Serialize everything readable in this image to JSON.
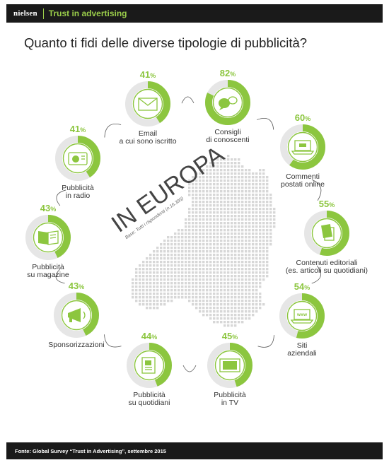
{
  "header": {
    "brand": "nielsen",
    "title": "Trust in advertising"
  },
  "main_title": "Quanto ti fidi delle diverse tipologie di pubblicità?",
  "map": {
    "heading": "IN EUROPA",
    "base": "Base: Tutti i rispondenti (n.16.395)"
  },
  "chart_data": {
    "type": "donut",
    "title": "Quanto ti fidi delle diverse tipologie di pubblicità?",
    "accent_color": "#8cc63f",
    "track_color": "#e6e6e6",
    "items": [
      {
        "label": [
          "Email",
          "a cui sono iscritto"
        ],
        "value": 41,
        "percent_label": "41%",
        "icon": "envelope-icon"
      },
      {
        "label": [
          "Consigli",
          "di conoscenti"
        ],
        "value": 82,
        "percent_label": "82%",
        "icon": "speech-bubbles-icon"
      },
      {
        "label": [
          "Commenti",
          "postati online"
        ],
        "value": 60,
        "percent_label": "60%",
        "icon": "laptop-icon"
      },
      {
        "label": [
          "Contenuti editoriali",
          "(es. articoli su quotidiani)"
        ],
        "value": 55,
        "percent_label": "55%",
        "icon": "document-icon"
      },
      {
        "label": [
          "Siti",
          "aziendali"
        ],
        "value": 54,
        "percent_label": "54%",
        "icon": "laptop-www-icon"
      },
      {
        "label": [
          "Pubblicità",
          "in TV"
        ],
        "value": 45,
        "percent_label": "45%",
        "icon": "tv-icon"
      },
      {
        "label": [
          "Pubblicità",
          "su quotidiani"
        ],
        "value": 44,
        "percent_label": "44%",
        "icon": "newspaper-icon"
      },
      {
        "label": [
          "Sponsorizzazioni"
        ],
        "value": 43,
        "percent_label": "43%",
        "icon": "megaphone-icon"
      },
      {
        "label": [
          "Pubblicità",
          "su magazine"
        ],
        "value": 43,
        "percent_label": "43%",
        "icon": "magazine-icon"
      },
      {
        "label": [
          "Pubblicità",
          "in radio"
        ],
        "value": 41,
        "percent_label": "41%",
        "icon": "radio-icon"
      }
    ]
  },
  "footer": {
    "source": "Fonte: Global Survey “Trust in Advertising”, settembre 2015"
  }
}
